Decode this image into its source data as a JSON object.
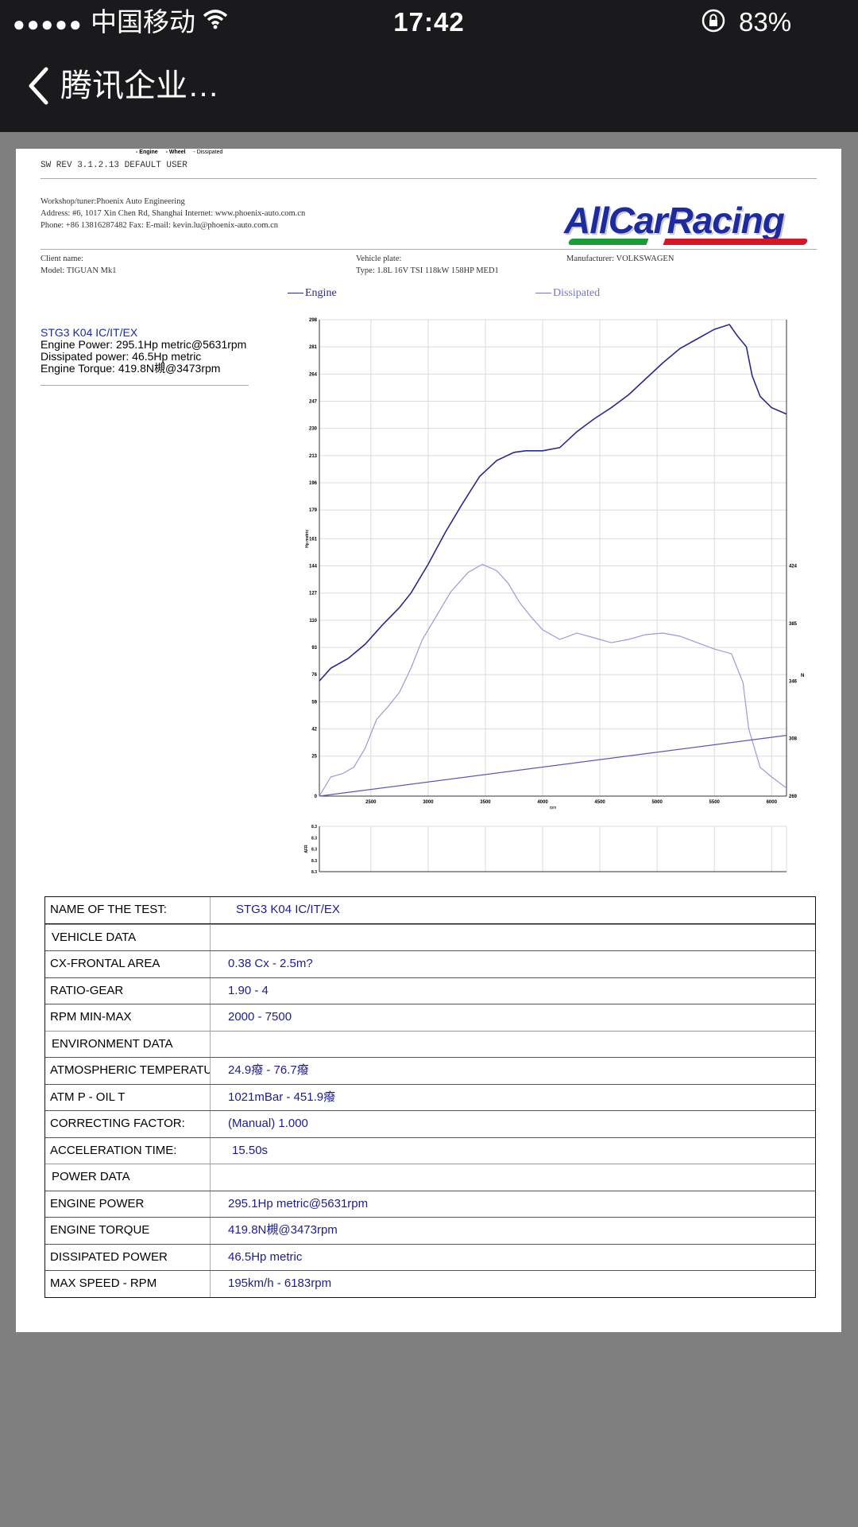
{
  "status_bar": {
    "signal": "●●●●●",
    "carrier": "中国移动",
    "time": "17:42",
    "battery": "83%"
  },
  "nav": {
    "title": "腾讯企业…"
  },
  "report": {
    "legend_top": {
      "engine": "- Engine",
      "wheel": "- Wheel",
      "dissipated": "- Dissipated"
    },
    "sw_rev": "SW REV 3.1.2.13   DEFAULT USER",
    "workshop": "Workshop/tuner:Phoenix Auto Engineering",
    "address": "Address: #6, 1017 Xin Chen Rd, Shanghai Internet: www.phoenix-auto.com.cn",
    "phone": "Phone: +86 13816287482 Fax:  E-mail: kevin.lu@phoenix-auto.com.cn",
    "logo": "AllCarRacing",
    "client_name": "Client name:",
    "model": "Model: TIGUAN Mk1",
    "vehicle_plate": "Vehicle plate:",
    "type": "Type: 1.8L 16V TSI 118kW 158HP MED1",
    "manufacturer": "Manufacturer: VOLKSWAGEN",
    "summary": {
      "test": "STG3 K04 IC/IT/EX",
      "engine_power": "Engine Power: 295.1Hp metric@5631rpm",
      "dissipated_power": "Dissipated power: 46.5Hp metric",
      "engine_torque": "Engine Torque: 419.8N槻@3473rpm"
    }
  },
  "chart_data": {
    "type": "line",
    "legend": [
      "Engine",
      "Dissipated"
    ],
    "xlabel": "rpm",
    "ylabel": "Hp metric",
    "xlim": [
      2050,
      6130
    ],
    "ylim": [
      0,
      298
    ],
    "x_ticks": [
      2500,
      3000,
      3500,
      4000,
      4500,
      5000,
      5500,
      6000
    ],
    "y_ticks": [
      0,
      25,
      42,
      59,
      76,
      93,
      110,
      127,
      144,
      161,
      179,
      196,
      213,
      230,
      247,
      264,
      281,
      298
    ],
    "y2_ticks": [
      269,
      308,
      346,
      385,
      424
    ],
    "y2_label": "N",
    "series": [
      {
        "name": "Engine",
        "x": [
          2050,
          2150,
          2300,
          2450,
          2600,
          2750,
          2850,
          3000,
          3150,
          3300,
          3450,
          3600,
          3750,
          3850,
          4000,
          4150,
          4300,
          4450,
          4600,
          4750,
          4900,
          5050,
          5200,
          5350,
          5500,
          5631,
          5700,
          5780,
          5830,
          5900,
          6000,
          6130
        ],
        "values": [
          72,
          80,
          86,
          95,
          107,
          118,
          127,
          145,
          165,
          183,
          200,
          210,
          215,
          216,
          216,
          218,
          228,
          236,
          243,
          251,
          261,
          271,
          280,
          286,
          292,
          295,
          288,
          281,
          263,
          250,
          243,
          239
        ]
      },
      {
        "name": "Dissipated",
        "x": [
          2050,
          2150,
          2250,
          2350,
          2450,
          2550,
          2650,
          2750,
          2850,
          2950,
          3050,
          3200,
          3350,
          3473,
          3600,
          3700,
          3800,
          3900,
          4000,
          4150,
          4300,
          4450,
          4600,
          4750,
          4900,
          5050,
          5200,
          5350,
          5500,
          5650,
          5750,
          5800,
          5900,
          6000,
          6130
        ],
        "values": [
          0,
          12,
          14,
          18,
          30,
          48,
          56,
          65,
          80,
          98,
          110,
          128,
          140,
          145,
          141,
          133,
          121,
          112,
          104,
          98,
          102,
          99,
          96,
          98,
          101,
          102,
          100,
          96,
          92,
          89,
          71,
          42,
          18,
          12,
          5
        ]
      },
      {
        "name": "Torque-axis line",
        "x": [
          2050,
          6130
        ],
        "values": [
          0,
          38
        ]
      }
    ],
    "afr_panel": {
      "ylabel": "AFR",
      "y_ticks": [
        "8.3",
        "8.3",
        "8.3",
        "8.3",
        "8.3"
      ]
    }
  },
  "table": {
    "rows": [
      {
        "label": "NAME OF THE TEST:",
        "value": "STG3 K04 IC/IT/EX",
        "header": true
      },
      {
        "label": "VEHICLE DATA",
        "value": "",
        "section": true
      },
      {
        "label": "CX-FRONTAL AREA",
        "value": "0.38 Cx - 2.5m?"
      },
      {
        "label": "RATIO-GEAR",
        "value": "1.90 - 4"
      },
      {
        "label": "RPM MIN-MAX",
        "value": "2000 - 7500"
      },
      {
        "label": "ENVIRONMENT DATA",
        "value": "",
        "section": true
      },
      {
        "label": "ATMOSPHERIC TEMPERATURE",
        "value": "24.9癈 - 76.7癈"
      },
      {
        "label": "ATM P - OIL T",
        "value": "1021mBar - 451.9癈"
      },
      {
        "label": "CORRECTING FACTOR:",
        "value": "(Manual) 1.000"
      },
      {
        "label": "ACCELERATION TIME:",
        "value": "15.50s"
      },
      {
        "label": "POWER DATA",
        "value": "",
        "section": true
      },
      {
        "label": "ENGINE POWER",
        "value": "295.1Hp metric@5631rpm"
      },
      {
        "label": "ENGINE TORQUE",
        "value": "419.8N槻@3473rpm"
      },
      {
        "label": "DISSIPATED POWER",
        "value": "46.5Hp metric"
      },
      {
        "label": "MAX SPEED - RPM",
        "value": "195km/h - 6183rpm"
      }
    ]
  },
  "colors": {
    "engine": "#2a2a86",
    "dissipated": "#9a9ad6",
    "torque": "#5a5ab0",
    "grid": "#dcdcdc"
  }
}
